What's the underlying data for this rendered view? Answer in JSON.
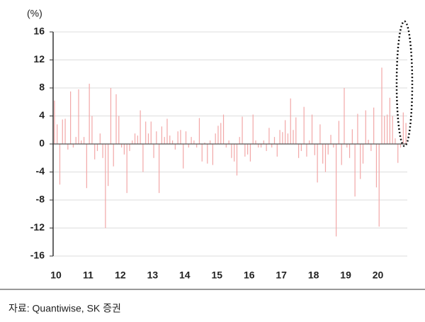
{
  "chart_data": {
    "type": "bar",
    "y_label": "(%)",
    "source": "자료: Quantiwise, SK 증권",
    "color": "#f2a7a7",
    "grid": true,
    "ylim": [
      -16,
      16
    ],
    "yticks": [
      -16,
      -12,
      -8,
      -4,
      0,
      4,
      8,
      12,
      16
    ],
    "categories": [
      "10",
      null,
      null,
      null,
      null,
      null,
      null,
      null,
      null,
      null,
      null,
      null,
      "11",
      null,
      null,
      null,
      null,
      null,
      null,
      null,
      null,
      null,
      null,
      null,
      "12",
      null,
      null,
      null,
      null,
      null,
      null,
      null,
      null,
      null,
      null,
      null,
      "13",
      null,
      null,
      null,
      null,
      null,
      null,
      null,
      null,
      null,
      null,
      null,
      "14",
      null,
      null,
      null,
      null,
      null,
      null,
      null,
      null,
      null,
      null,
      null,
      "15",
      null,
      null,
      null,
      null,
      null,
      null,
      null,
      null,
      null,
      null,
      null,
      "16",
      null,
      null,
      null,
      null,
      null,
      null,
      null,
      null,
      null,
      null,
      null,
      "17",
      null,
      null,
      null,
      null,
      null,
      null,
      null,
      null,
      null,
      null,
      null,
      "18",
      null,
      null,
      null,
      null,
      null,
      null,
      null,
      null,
      null,
      null,
      null,
      "19",
      null,
      null,
      null,
      null,
      null,
      null,
      null,
      null,
      null,
      null,
      null,
      "20",
      null,
      null,
      null,
      null,
      null,
      null,
      null,
      null,
      null,
      null,
      null
    ],
    "values": [
      6.2,
      2.8,
      -5.8,
      3.5,
      3.6,
      -0.8,
      7.5,
      -0.5,
      1.0,
      7.8,
      0.5,
      1.0,
      -6.3,
      8.6,
      4.0,
      -2.2,
      -1.0,
      1.5,
      -2.0,
      -12.0,
      -6.0,
      8.0,
      -3.2,
      7.1,
      4.0,
      -0.5,
      -1.5,
      -7.0,
      -1.0,
      0.5,
      1.5,
      1.2,
      4.8,
      -4.0,
      3.2,
      1.5,
      3.2,
      -2.0,
      1.8,
      -7.0,
      2.5,
      1.0,
      3.6,
      1.2,
      0.5,
      -0.8,
      1.8,
      2.0,
      -3.5,
      1.8,
      -0.5,
      1.0,
      0.5,
      -0.5,
      3.7,
      -2.5,
      0.2,
      -2.8,
      0.5,
      -3.0,
      1.5,
      2.6,
      3.0,
      4.2,
      -0.5,
      0.5,
      -2.0,
      -2.5,
      -4.5,
      1.0,
      3.9,
      -1.8,
      -1.5,
      -2.5,
      4.2,
      0.5,
      -0.5,
      -0.5,
      0.5,
      -1.0,
      2.3,
      -0.5,
      1.0,
      -1.8,
      2.0,
      1.7,
      3.4,
      1.5,
      6.5,
      2.0,
      3.8,
      -2.0,
      -1.0,
      5.3,
      -1.8,
      0.5,
      4.2,
      -1.6,
      -5.5,
      2.8,
      -2.8,
      -4.0,
      -1.5,
      1.3,
      -0.5,
      -13.2,
      3.3,
      -3.0,
      8.0,
      -0.5,
      -2.0,
      2.1,
      -7.5,
      4.3,
      -5.0,
      -2.8,
      4.8,
      0.6,
      -1.0,
      5.2,
      -6.2,
      -11.8,
      10.9,
      4.0,
      4.2,
      6.6,
      4.0,
      0.8,
      -2.7,
      -0.5,
      4.5,
      3.0
    ]
  }
}
